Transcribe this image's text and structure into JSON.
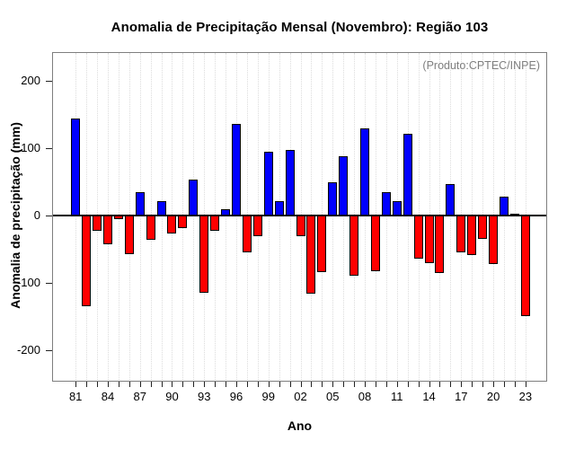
{
  "chart_data": {
    "type": "bar",
    "title": "Anomalia de Precipitação Mensal (Novembro): Região 103",
    "annotation": "(Produto:CPTEC/INPE)",
    "xlabel": "Ano",
    "ylabel": "Anomalia de precipitação (mm)",
    "years": [
      1981,
      1982,
      1983,
      1984,
      1985,
      1986,
      1987,
      1988,
      1989,
      1990,
      1991,
      1992,
      1993,
      1994,
      1995,
      1996,
      1997,
      1998,
      1999,
      2000,
      2001,
      2002,
      2003,
      2004,
      2005,
      2006,
      2007,
      2008,
      2009,
      2010,
      2011,
      2012,
      2013,
      2014,
      2015,
      2016,
      2017,
      2018,
      2019,
      2020,
      2021,
      2022,
      2023
    ],
    "values": [
      144,
      -134,
      -23,
      -42,
      -5,
      -57,
      35,
      -36,
      22,
      -26,
      -19,
      54,
      -114,
      -22,
      10,
      136,
      -54,
      -30,
      95,
      22,
      97,
      -30,
      -116,
      -84,
      50,
      88,
      -89,
      130,
      -83,
      35,
      21,
      121,
      -64,
      -71,
      -85,
      47,
      -55,
      -59,
      -34,
      -72,
      28,
      3,
      -149
    ],
    "x_tick_labels": [
      "81",
      "84",
      "87",
      "90",
      "93",
      "96",
      "99",
      "02",
      "05",
      "08",
      "11",
      "14",
      "17",
      "20",
      "23"
    ],
    "x_tick_label_interval_years": 3,
    "y_ticks": [
      -200,
      -100,
      0,
      100,
      200
    ],
    "ylim": [
      -250,
      250
    ],
    "grid": "vertical dotted line per year",
    "legend_position": "none",
    "colors": {
      "positive_bar": "#0000ff",
      "negative_bar": "#ff0000",
      "bar_border": "#000000",
      "gridline": "#dcdcdc",
      "frame": "#7e7e7e",
      "zero_line": "#000000",
      "annotation_text": "#7f7f7f",
      "text": "#000000",
      "background": "#ffffff"
    }
  }
}
